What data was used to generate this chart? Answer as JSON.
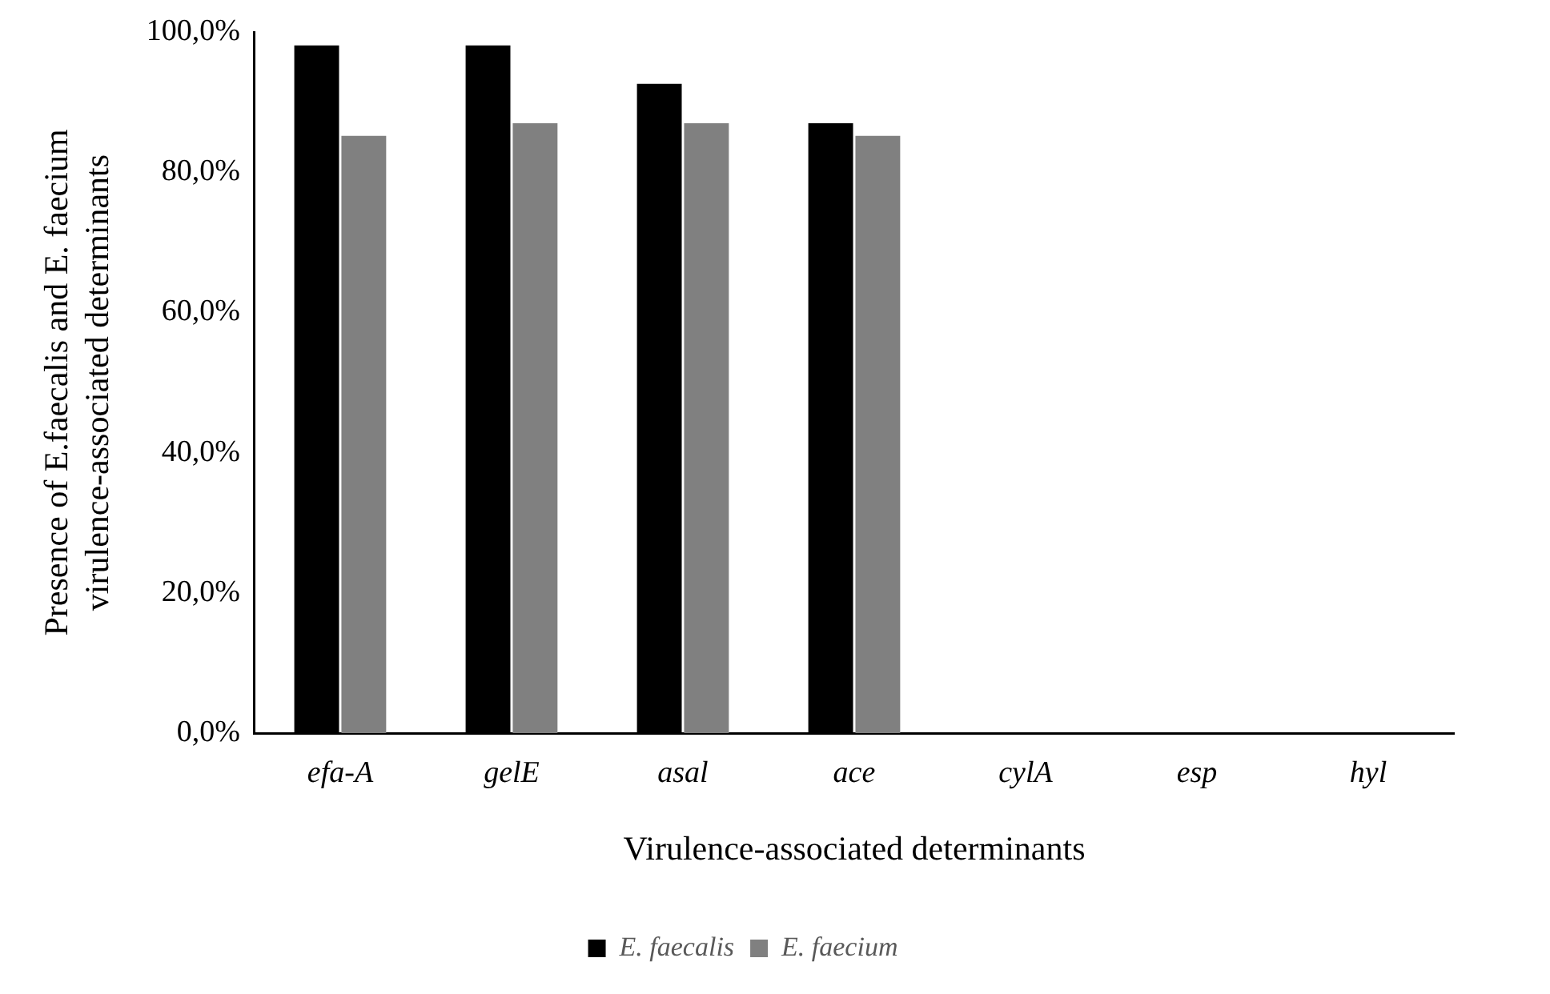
{
  "chart_data": {
    "type": "bar",
    "xlabel": "Virulence-associated determinants",
    "ylabel": "Presence of E.faecalis and E. faecium\nvirulence-associated determinants",
    "categories": [
      "efa-A",
      "gelE",
      "asal",
      "ace",
      "cylA",
      "esp",
      "hyl"
    ],
    "series": [
      {
        "name": "E. faecalis",
        "color": "#000000",
        "values": [
          98.1,
          98.1,
          92.6,
          87.0,
          0,
          0,
          0
        ]
      },
      {
        "name": "E. faecium",
        "color": "#808080",
        "values": [
          85.2,
          87.0,
          87.0,
          85.2,
          0,
          0,
          0
        ]
      }
    ],
    "ylim": [
      0,
      100
    ],
    "yticks": [
      {
        "value": 0,
        "label": "0,0%"
      },
      {
        "value": 20,
        "label": "20,0%"
      },
      {
        "value": 40,
        "label": "40,0%"
      },
      {
        "value": 60,
        "label": "60,0%"
      },
      {
        "value": 80,
        "label": "80,0%"
      },
      {
        "value": 100,
        "label": "100,0%"
      }
    ],
    "grid": false,
    "legend": "bottom"
  }
}
